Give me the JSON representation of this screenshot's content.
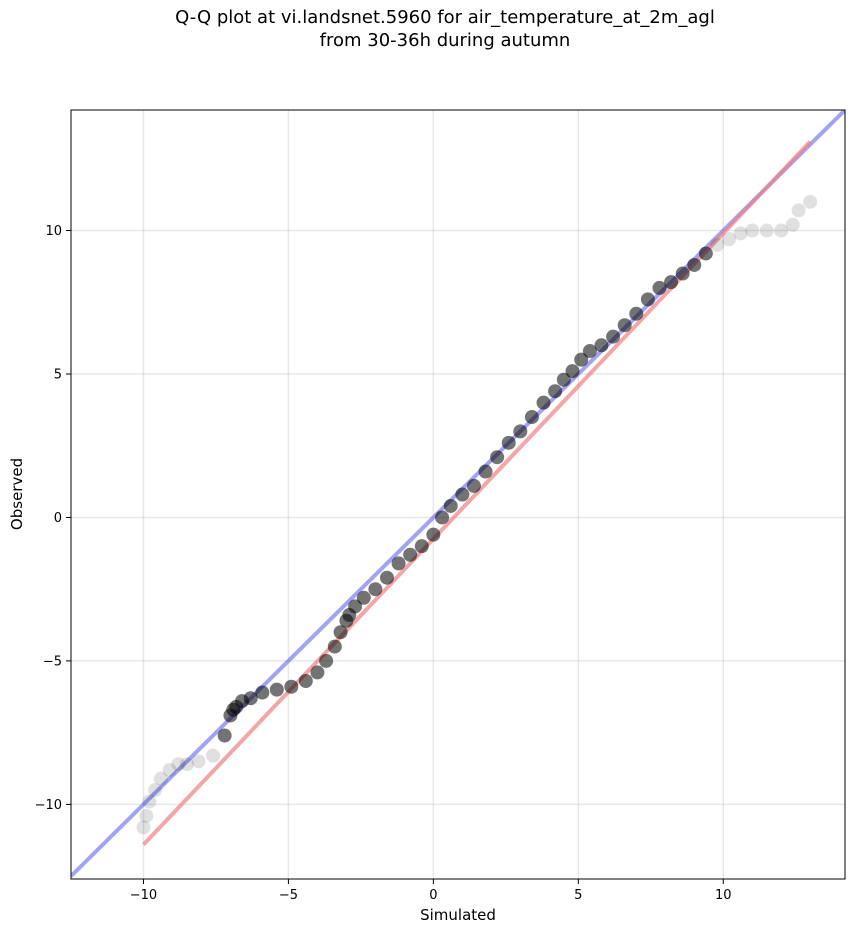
{
  "chart_data": {
    "type": "scatter",
    "title_lines": [
      "Q-Q plot at vi.landsnet.5960 for air_temperature_at_2m_agl",
      "from 30-36h during autumn"
    ],
    "xlabel": "Simulated",
    "ylabel": "Observed",
    "xlim": [
      -12.5,
      14.2
    ],
    "ylim": [
      -12.6,
      14.2
    ],
    "xticks": [
      -10,
      -5,
      0,
      5,
      10
    ],
    "yticks": [
      -10,
      -5,
      0,
      5,
      10
    ],
    "xtick_labels": [
      "−10",
      "−5",
      "0",
      "5",
      "10"
    ],
    "ytick_labels": [
      "−10",
      "−5",
      "0",
      "5",
      "10"
    ],
    "grid": true,
    "reference_line": {
      "description": "1:1 line",
      "from": [
        -12.5,
        -12.5
      ],
      "to": [
        14.2,
        14.2
      ],
      "color": "#6666ee"
    },
    "fit_line": {
      "description": "fitted line",
      "from": [
        -10.0,
        -11.4
      ],
      "to": [
        13.0,
        13.1
      ],
      "color": "#f08080"
    },
    "quantiles": {
      "x": [
        -10.0,
        -9.9,
        -9.8,
        -9.6,
        -9.4,
        -9.1,
        -8.8,
        -8.5,
        -8.1,
        -7.6,
        -7.2,
        -7.0,
        -6.9,
        -6.8,
        -6.6,
        -6.3,
        -5.9,
        -5.4,
        -4.9,
        -4.4,
        -4.0,
        -3.7,
        -3.4,
        -3.2,
        -3.0,
        -2.9,
        -2.7,
        -2.4,
        -2.0,
        -1.6,
        -1.2,
        -0.8,
        -0.4,
        0.0,
        0.3,
        0.6,
        1.0,
        1.4,
        1.8,
        2.2,
        2.6,
        3.0,
        3.4,
        3.8,
        4.2,
        4.5,
        4.8,
        5.1,
        5.4,
        5.8,
        6.2,
        6.6,
        7.0,
        7.4,
        7.8,
        8.2,
        8.6,
        9.0,
        9.4,
        9.8,
        10.2,
        10.6,
        11.0,
        11.5,
        12.0,
        12.4,
        12.6,
        13.0
      ],
      "y": [
        -10.8,
        -10.4,
        -9.9,
        -9.5,
        -9.1,
        -8.8,
        -8.6,
        -8.6,
        -8.5,
        -8.3,
        -7.6,
        -6.9,
        -6.7,
        -6.6,
        -6.4,
        -6.3,
        -6.1,
        -6.0,
        -5.9,
        -5.7,
        -5.4,
        -5.0,
        -4.5,
        -4.0,
        -3.6,
        -3.4,
        -3.1,
        -2.8,
        -2.5,
        -2.1,
        -1.6,
        -1.3,
        -1.0,
        -0.6,
        0.0,
        0.4,
        0.8,
        1.1,
        1.6,
        2.1,
        2.6,
        3.0,
        3.5,
        4.0,
        4.4,
        4.8,
        5.1,
        5.5,
        5.8,
        6.0,
        6.3,
        6.7,
        7.1,
        7.6,
        8.0,
        8.2,
        8.5,
        8.8,
        9.2,
        9.5,
        9.7,
        9.9,
        10.0,
        10.0,
        10.0,
        10.2,
        10.7,
        11.0
      ],
      "point_color": "#000000"
    }
  }
}
